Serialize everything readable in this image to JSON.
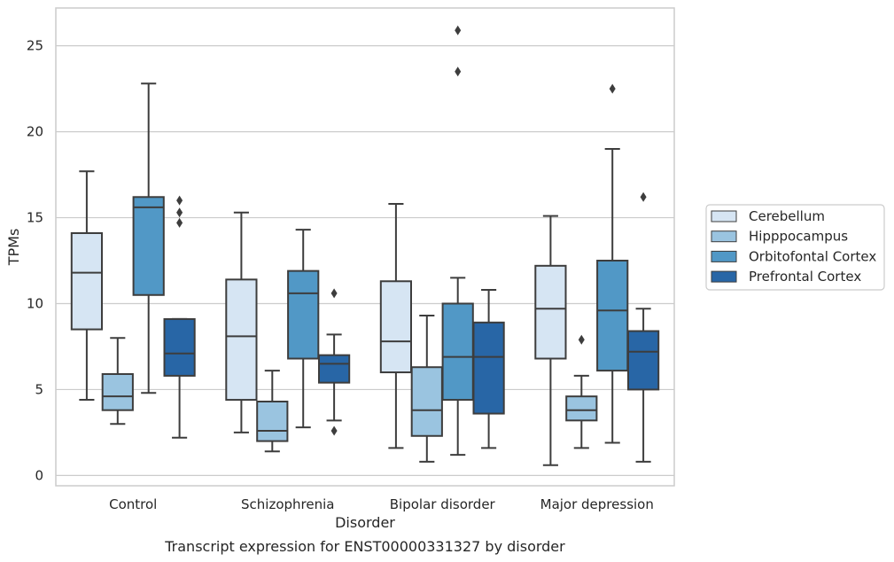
{
  "chart_data": {
    "type": "box",
    "xlabel": "Disorder",
    "ylabel": "TPMs",
    "caption": "Transcript expression for ENST00000331327 by disorder",
    "ylim": [
      -0.6,
      27.2
    ],
    "yticks": [
      0,
      5,
      10,
      15,
      20,
      25
    ],
    "grid": true,
    "legend_position": "right",
    "categories": [
      "Control",
      "Schizophrenia",
      "Bipolar disorder",
      "Major depression"
    ],
    "series": [
      {
        "name": "Cerebellum",
        "color": "#d6e5f3",
        "boxes": [
          {
            "whisker_low": 4.4,
            "q1": 8.5,
            "median": 11.8,
            "q3": 14.1,
            "whisker_high": 17.7,
            "outliers": []
          },
          {
            "whisker_low": 2.5,
            "q1": 4.4,
            "median": 8.1,
            "q3": 11.4,
            "whisker_high": 15.3,
            "outliers": []
          },
          {
            "whisker_low": 1.6,
            "q1": 6.0,
            "median": 7.8,
            "q3": 11.3,
            "whisker_high": 15.8,
            "outliers": []
          },
          {
            "whisker_low": 0.6,
            "q1": 6.8,
            "median": 9.7,
            "q3": 12.2,
            "whisker_high": 15.1,
            "outliers": []
          }
        ]
      },
      {
        "name": "Hipppocampus",
        "color": "#9ac4e0",
        "boxes": [
          {
            "whisker_low": 3.0,
            "q1": 3.8,
            "median": 4.6,
            "q3": 5.9,
            "whisker_high": 8.0,
            "outliers": []
          },
          {
            "whisker_low": 1.4,
            "q1": 2.0,
            "median": 2.6,
            "q3": 4.3,
            "whisker_high": 6.1,
            "outliers": []
          },
          {
            "whisker_low": 0.8,
            "q1": 2.3,
            "median": 3.8,
            "q3": 6.3,
            "whisker_high": 9.3,
            "outliers": []
          },
          {
            "whisker_low": 1.6,
            "q1": 3.2,
            "median": 3.8,
            "q3": 4.6,
            "whisker_high": 5.8,
            "outliers": [
              7.9
            ]
          }
        ]
      },
      {
        "name": "Orbitofontal Cortex",
        "color": "#5198c6",
        "boxes": [
          {
            "whisker_low": 4.8,
            "q1": 10.5,
            "median": 15.6,
            "q3": 16.2,
            "whisker_high": 22.8,
            "outliers": []
          },
          {
            "whisker_low": 2.8,
            "q1": 6.8,
            "median": 10.6,
            "q3": 11.9,
            "whisker_high": 14.3,
            "outliers": []
          },
          {
            "whisker_low": 1.2,
            "q1": 4.4,
            "median": 6.9,
            "q3": 10.0,
            "whisker_high": 11.5,
            "outliers": [
              23.5,
              25.9
            ]
          },
          {
            "whisker_low": 1.9,
            "q1": 6.1,
            "median": 9.6,
            "q3": 12.5,
            "whisker_high": 19.0,
            "outliers": [
              22.5
            ]
          }
        ]
      },
      {
        "name": "Prefrontal Cortex",
        "color": "#2866a6",
        "boxes": [
          {
            "whisker_low": 2.2,
            "q1": 5.8,
            "median": 7.1,
            "q3": 9.1,
            "whisker_high": 9.1,
            "outliers": [
              14.7,
              15.3,
              16.0
            ]
          },
          {
            "whisker_low": 3.2,
            "q1": 5.4,
            "median": 6.5,
            "q3": 7.0,
            "whisker_high": 8.2,
            "outliers": [
              2.6,
              10.6
            ]
          },
          {
            "whisker_low": 1.6,
            "q1": 3.6,
            "median": 6.9,
            "q3": 8.9,
            "whisker_high": 10.8,
            "outliers": []
          },
          {
            "whisker_low": 0.8,
            "q1": 5.0,
            "median": 7.2,
            "q3": 8.4,
            "whisker_high": 9.7,
            "outliers": [
              16.2
            ]
          }
        ]
      }
    ]
  }
}
